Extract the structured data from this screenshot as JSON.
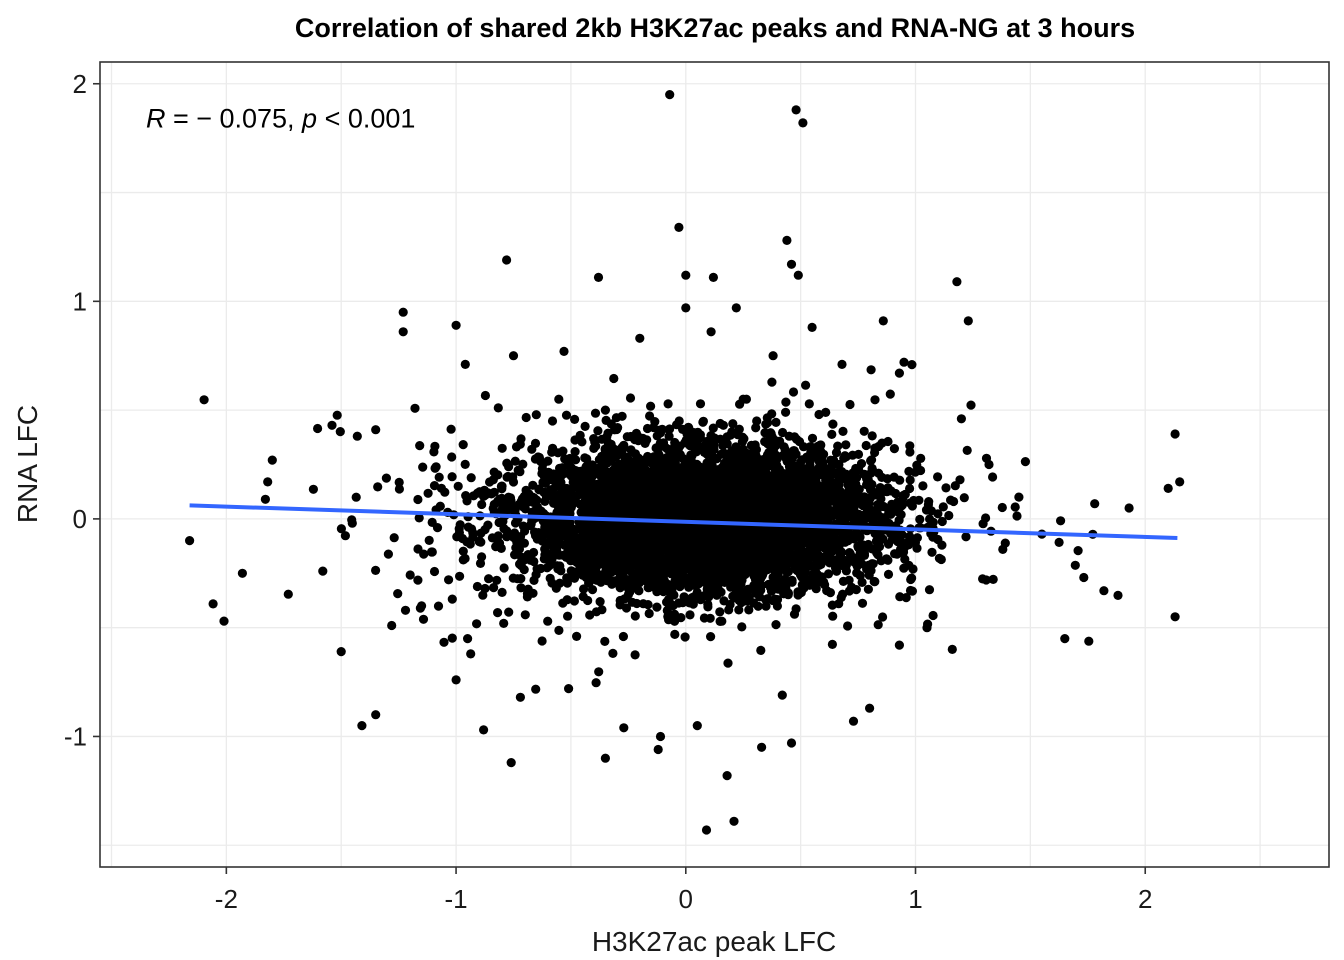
{
  "chart_data": {
    "type": "scatter",
    "title": "Correlation of shared 2kb H3K27ac peaks and RNA-NG  at 3 hours",
    "xlabel": "H3K27ac peak LFC",
    "ylabel": "RNA LFC",
    "xlim": [
      -2.55,
      2.8
    ],
    "ylim": [
      -1.6,
      2.1
    ],
    "x_ticks": [
      -2,
      -1,
      0,
      1,
      2
    ],
    "x_tick_labels": [
      "-2",
      "-1",
      "0",
      "1",
      "2"
    ],
    "y_ticks": [
      -1,
      0,
      1,
      2
    ],
    "y_tick_labels": [
      "-1",
      "0",
      "1",
      "2"
    ],
    "grid": true,
    "annotation": {
      "r_symbol": "R",
      "r_text": " = − 0.075, ",
      "p_symbol": "p",
      "p_text": " < 0.001",
      "position": [
        -2.35,
        1.8
      ]
    },
    "colors": {
      "points": "#000000",
      "fit_line": "#3366ff",
      "background": "#ffffff"
    },
    "fit_line": {
      "x": [
        -2.16,
        2.14
      ],
      "y": [
        0.062,
        -0.088
      ]
    },
    "series": [
      {
        "points": [
          [
            -0.07,
            1.95
          ],
          [
            0.48,
            1.88
          ],
          [
            0.51,
            1.82
          ],
          [
            -0.03,
            1.34
          ],
          [
            0.44,
            1.28
          ],
          [
            -0.78,
            1.19
          ],
          [
            0.46,
            1.17
          ],
          [
            0.49,
            1.12
          ],
          [
            0.0,
            1.12
          ],
          [
            0.12,
            1.11
          ],
          [
            -0.38,
            1.11
          ],
          [
            1.18,
            1.09
          ],
          [
            -1.23,
            0.95
          ],
          [
            0.22,
            0.97
          ],
          [
            0.0,
            0.97
          ],
          [
            -1.0,
            0.89
          ],
          [
            1.23,
            0.91
          ],
          [
            0.86,
            0.91
          ],
          [
            -1.23,
            0.86
          ],
          [
            0.55,
            0.88
          ],
          [
            0.11,
            0.86
          ],
          [
            -0.2,
            0.83
          ],
          [
            -0.75,
            0.75
          ],
          [
            -0.96,
            0.71
          ],
          [
            -0.53,
            0.77
          ],
          [
            0.38,
            0.75
          ],
          [
            0.68,
            0.71
          ],
          [
            0.95,
            0.72
          ],
          [
            0.93,
            0.67
          ],
          [
            -1.35,
            0.41
          ],
          [
            1.2,
            0.46
          ],
          [
            2.13,
            0.39
          ],
          [
            2.15,
            0.17
          ],
          [
            2.1,
            0.14
          ],
          [
            1.93,
            0.05
          ],
          [
            1.78,
            0.07
          ],
          [
            -1.54,
            0.43
          ],
          [
            -1.43,
            0.38
          ],
          [
            -1.82,
            0.17
          ],
          [
            -1.8,
            0.27
          ],
          [
            -1.83,
            0.09
          ],
          [
            -2.16,
            -0.1
          ],
          [
            -1.93,
            -0.25
          ],
          [
            -2.01,
            -0.47
          ],
          [
            -1.58,
            -0.24
          ],
          [
            -1.5,
            -0.61
          ],
          [
            -1.41,
            -0.95
          ],
          [
            -1.35,
            -0.9
          ],
          [
            -1.28,
            -0.49
          ],
          [
            -1.22,
            -0.42
          ],
          [
            -1.15,
            -0.4
          ],
          [
            -1.0,
            -0.74
          ],
          [
            -0.88,
            -0.97
          ],
          [
            -0.76,
            -1.12
          ],
          [
            -0.35,
            -1.1
          ],
          [
            -0.12,
            -1.06
          ],
          [
            0.09,
            -1.43
          ],
          [
            0.21,
            -1.39
          ],
          [
            0.18,
            -1.18
          ],
          [
            0.33,
            -1.05
          ],
          [
            0.46,
            -1.03
          ],
          [
            1.65,
            -0.55
          ],
          [
            1.82,
            -0.33
          ],
          [
            2.13,
            -0.45
          ],
          [
            1.16,
            -0.6
          ],
          [
            1.05,
            -0.5
          ],
          [
            0.93,
            -0.58
          ],
          [
            0.8,
            -0.87
          ],
          [
            0.73,
            -0.93
          ],
          [
            0.42,
            -0.81
          ],
          [
            0.05,
            -0.95
          ],
          [
            -0.11,
            -1.0
          ],
          [
            -0.27,
            -0.96
          ],
          [
            -0.51,
            -0.78
          ],
          [
            -0.72,
            -0.82
          ],
          [
            -0.95,
            -0.55
          ],
          [
            1.45,
            0.1
          ],
          [
            1.55,
            -0.07
          ],
          [
            1.38,
            -0.14
          ],
          [
            1.32,
            0.25
          ],
          [
            -0.14,
            0.42
          ],
          [
            0.25,
            0.55
          ],
          [
            0.45,
            0.38
          ],
          [
            -0.58,
            0.45
          ],
          [
            0.58,
            0.48
          ],
          [
            -0.35,
            0.5
          ]
        ]
      }
    ],
    "cloud": {
      "dense_count": 4700,
      "dense_center": [
        0.08,
        0.0
      ],
      "dense_spread": [
        0.38,
        0.16
      ],
      "wide_count": 700,
      "wide_center": [
        0.0,
        0.0
      ],
      "wide_spread": [
        0.62,
        0.26
      ]
    }
  }
}
